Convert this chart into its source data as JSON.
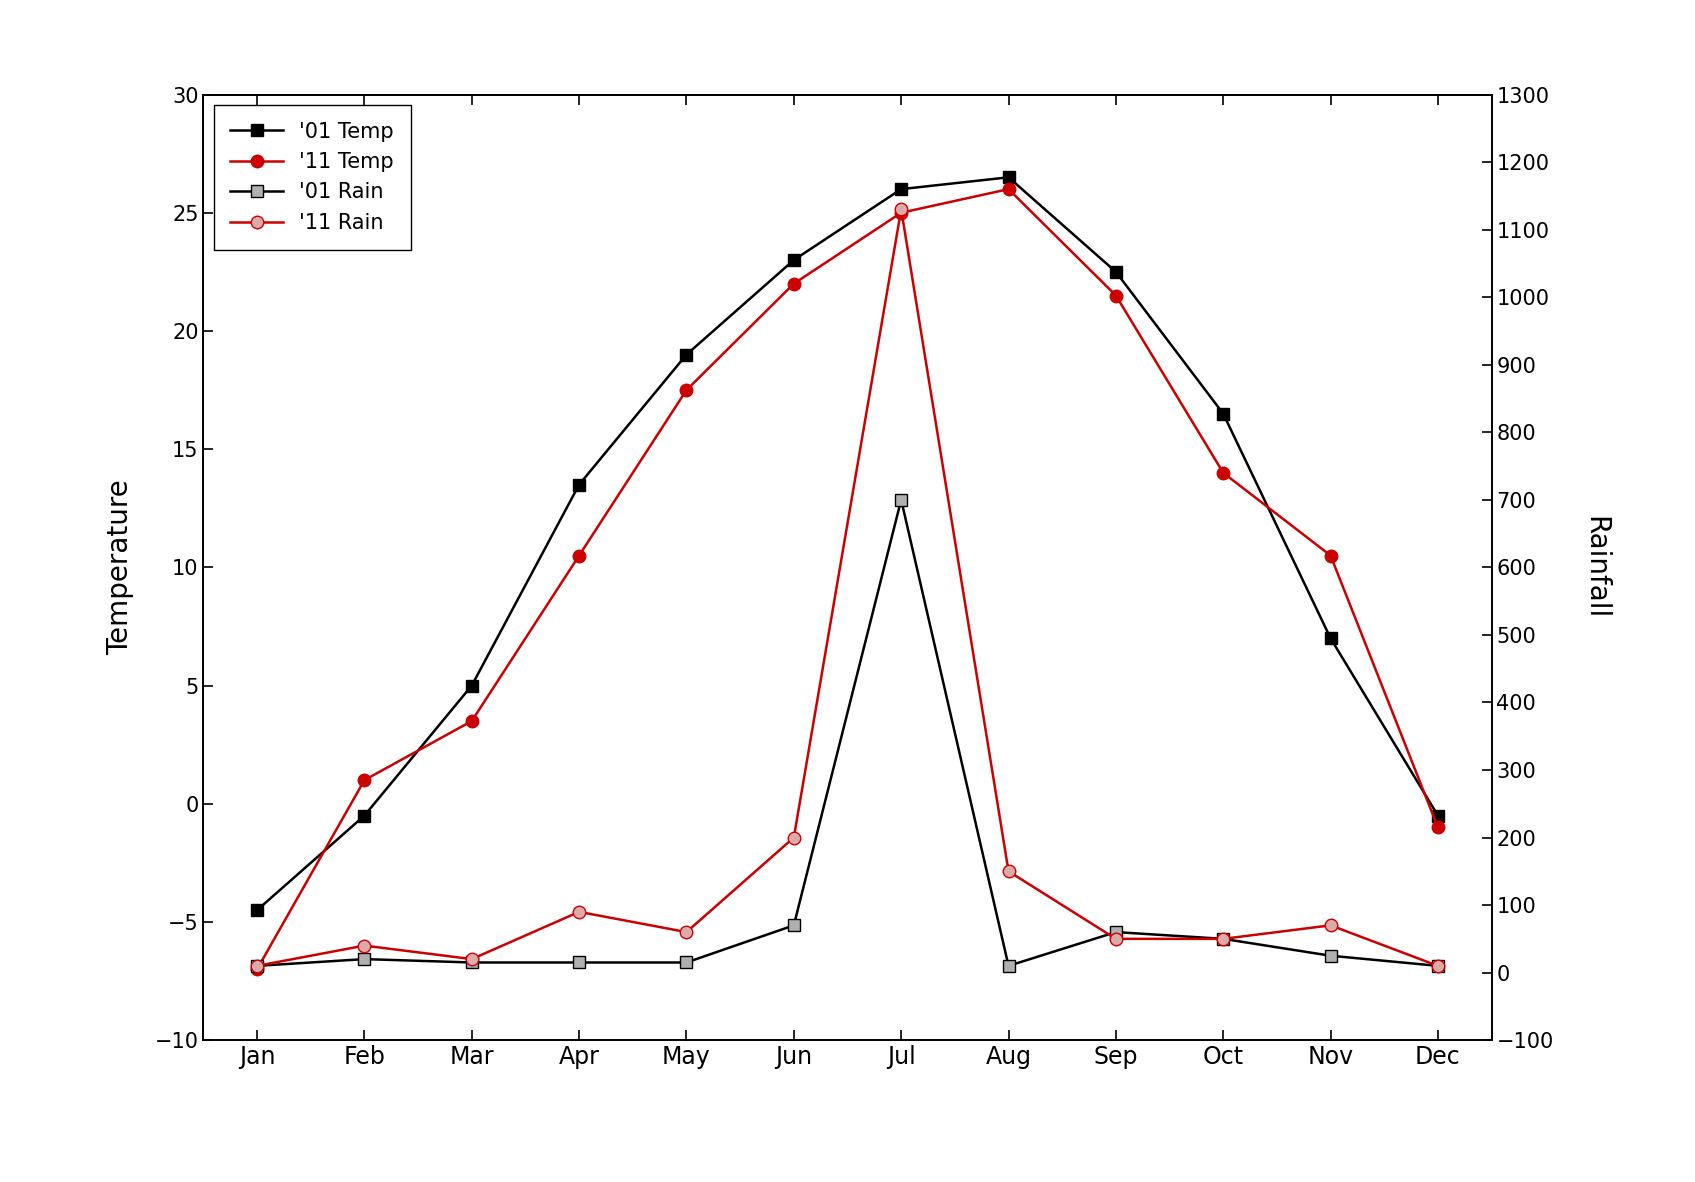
{
  "months": [
    "Jan",
    "Feb",
    "Mar",
    "Apr",
    "May",
    "Jun",
    "Jul",
    "Aug",
    "Sep",
    "Oct",
    "Nov",
    "Dec"
  ],
  "temp01": [
    -4.5,
    -0.5,
    5.0,
    13.5,
    19.0,
    23.0,
    26.0,
    26.5,
    22.5,
    16.5,
    7.0,
    -0.5
  ],
  "temp11": [
    -7.0,
    1.0,
    3.5,
    10.5,
    17.5,
    22.0,
    25.0,
    26.0,
    21.5,
    14.0,
    10.5,
    -1.0
  ],
  "rain01": [
    10,
    20,
    15,
    15,
    15,
    70,
    700,
    10,
    60,
    50,
    25,
    10
  ],
  "rain11": [
    10,
    40,
    20,
    90,
    60,
    200,
    1130,
    150,
    50,
    50,
    70,
    10
  ],
  "temp_color01": "#000000",
  "temp_color11": "#cc0000",
  "rain_color01": "#000000",
  "rain_color11": "#cc0000",
  "rain_fill01": "#b0b0b0",
  "rain_fill11": "#ddaaaa",
  "ylim_left": [
    -10,
    30
  ],
  "ylim_right": [
    -100,
    1300
  ],
  "yticks_left": [
    -10,
    -5,
    0,
    5,
    10,
    15,
    20,
    25,
    30
  ],
  "yticks_right": [
    -100,
    0,
    100,
    200,
    300,
    400,
    500,
    600,
    700,
    800,
    900,
    1000,
    1100,
    1200,
    1300
  ],
  "ylabel_left": "Temperature",
  "ylabel_right": "Rainfall",
  "legend_labels": [
    "'01 Temp",
    "'11 Temp",
    "'01 Rain",
    "'11 Rain"
  ],
  "background_color": "#ffffff",
  "linewidth": 1.8,
  "markersize": 9,
  "figsize": [
    16.95,
    11.82
  ],
  "dpi": 100
}
